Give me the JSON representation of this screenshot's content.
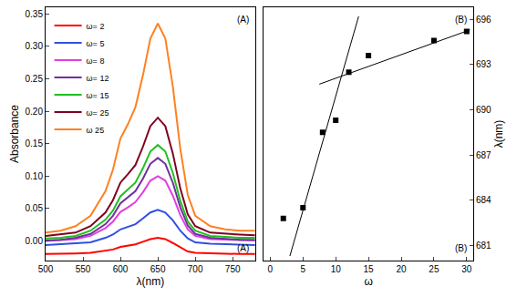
{
  "chart_data": [
    {
      "type": "line",
      "xlabel": "λ(nm)",
      "ylabel": "Absorbance",
      "x": [
        500,
        520,
        540,
        560,
        580,
        590,
        600,
        610,
        620,
        630,
        640,
        650,
        660,
        670,
        680,
        690,
        700,
        720,
        740,
        760,
        780
      ],
      "series": [
        {
          "name": "ω= 2",
          "color": "#ff0000",
          "values": [
            -0.02,
            -0.02,
            -0.019,
            -0.018,
            -0.015,
            -0.013,
            -0.009,
            -0.007,
            -0.005,
            -0.001,
            0.003,
            0.005,
            0.003,
            -0.003,
            -0.01,
            -0.016,
            -0.018,
            -0.019,
            -0.02,
            -0.02,
            -0.02
          ]
        },
        {
          "name": "ω= 5",
          "color": "#3050e0",
          "values": [
            -0.006,
            -0.005,
            -0.004,
            -0.002,
            0.005,
            0.01,
            0.018,
            0.022,
            0.026,
            0.035,
            0.044,
            0.048,
            0.044,
            0.032,
            0.016,
            0.004,
            -0.002,
            -0.004,
            -0.005,
            -0.005,
            -0.006
          ]
        },
        {
          "name": "ω= 8",
          "color": "#e040e0",
          "values": [
            0.0,
            0.001,
            0.003,
            0.008,
            0.02,
            0.03,
            0.045,
            0.052,
            0.06,
            0.075,
            0.093,
            0.1,
            0.093,
            0.07,
            0.04,
            0.018,
            0.008,
            0.003,
            0.002,
            0.001,
            0.001
          ]
        },
        {
          "name": "ω= 12",
          "color": "#7030a0",
          "values": [
            0.001,
            0.002,
            0.005,
            0.011,
            0.026,
            0.039,
            0.058,
            0.067,
            0.077,
            0.096,
            0.119,
            0.128,
            0.119,
            0.09,
            0.052,
            0.024,
            0.011,
            0.005,
            0.003,
            0.002,
            0.002
          ]
        },
        {
          "name": "ω= 15",
          "color": "#20c020",
          "values": [
            0.004,
            0.005,
            0.008,
            0.016,
            0.033,
            0.047,
            0.069,
            0.079,
            0.09,
            0.112,
            0.138,
            0.148,
            0.138,
            0.105,
            0.062,
            0.03,
            0.016,
            0.008,
            0.006,
            0.005,
            0.005
          ]
        },
        {
          "name": "ω= 25",
          "color": "#800020",
          "values": [
            0.008,
            0.01,
            0.013,
            0.023,
            0.044,
            0.063,
            0.09,
            0.103,
            0.117,
            0.145,
            0.177,
            0.19,
            0.177,
            0.135,
            0.081,
            0.041,
            0.023,
            0.013,
            0.011,
            0.01,
            0.009
          ]
        },
        {
          "name": "ω 25",
          "color": "#ff8020",
          "values": [
            0.013,
            0.016,
            0.023,
            0.039,
            0.077,
            0.11,
            0.158,
            0.18,
            0.206,
            0.255,
            0.312,
            0.335,
            0.312,
            0.238,
            0.142,
            0.071,
            0.039,
            0.023,
            0.018,
            0.016,
            0.016
          ]
        }
      ],
      "xlim": [
        500,
        780
      ],
      "xticks": [
        500,
        550,
        600,
        650,
        700,
        750
      ],
      "ylim": [
        -0.03,
        0.36
      ],
      "yticks": [
        {
          "value": 0,
          "label": "0.00"
        },
        {
          "value": 0.05,
          "label": "0.05"
        },
        {
          "value": 0.1,
          "label": "0.10"
        },
        {
          "value": 0.15,
          "label": "0.15"
        },
        {
          "value": 0.2,
          "label": "0.20"
        },
        {
          "value": 0.25,
          "label": "0.25"
        },
        {
          "value": 0.3,
          "label": "0.30"
        },
        {
          "value": 0.35,
          "label": "0.35"
        }
      ],
      "legend": "upper left",
      "annotations": [
        "(A)",
        "(A)"
      ]
    },
    {
      "type": "scatter",
      "xlabel": "ω",
      "ylabel": "λ(nm)",
      "series": [
        {
          "type": "scatter",
          "marker": "square",
          "color": "#000000",
          "x": [
            2,
            5,
            8,
            10,
            12,
            15,
            25,
            30
          ],
          "values": [
            682.8,
            683.5,
            688.5,
            689.3,
            692.5,
            693.6,
            694.6,
            695.2
          ]
        },
        {
          "type": "line",
          "color": "#000000",
          "x": [
            3,
            13.5
          ],
          "values": [
            680.3,
            696.2
          ]
        },
        {
          "type": "line",
          "color": "#000000",
          "x": [
            7.5,
            30.5
          ],
          "values": [
            691.7,
            695.3
          ]
        }
      ],
      "xlim": [
        -1,
        31
      ],
      "xticks": [
        0,
        5,
        10,
        15,
        20,
        25,
        30
      ],
      "ylim": [
        680,
        696.8
      ],
      "yticks": [
        681,
        684,
        687,
        690,
        693,
        696
      ],
      "annotations": [
        "(B)",
        "(B)"
      ]
    }
  ]
}
